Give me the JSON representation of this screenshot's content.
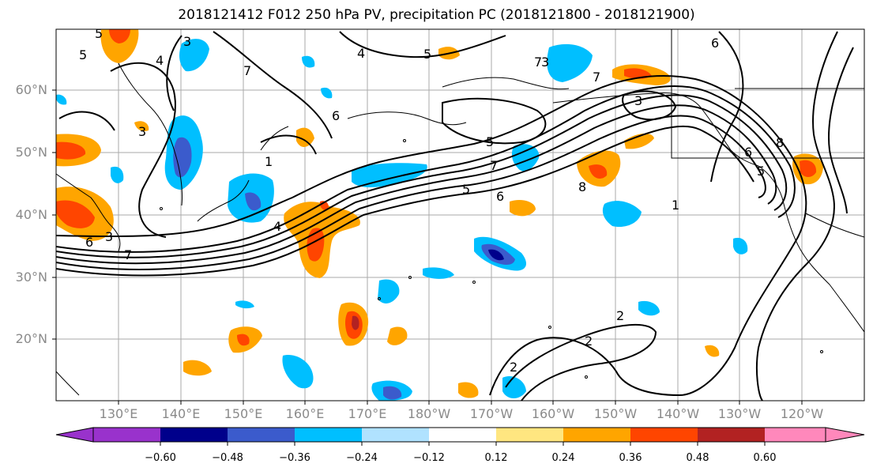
{
  "title": "2018121412 F012 250 hPa PV, precipitation PC (2018121800 - 2018121900)",
  "lat_labels": [
    "60°N",
    "50°N",
    "40°N",
    "30°N",
    "20°N"
  ],
  "lon_labels": [
    "130°E",
    "140°E",
    "150°E",
    "160°E",
    "170°E",
    "180°W",
    "170°W",
    "160°W",
    "150°W",
    "140°W",
    "130°W",
    "120°W"
  ],
  "colorbar": {
    "ticks": [
      "−0.60",
      "−0.48",
      "−0.36",
      "−0.24",
      "−0.12",
      "0.12",
      "0.24",
      "0.36",
      "0.48",
      "0.60"
    ],
    "colors": [
      "#9932cc",
      "#00008b",
      "#3b5bcc",
      "#00bfff",
      "#b0e2ff",
      "#ffffff",
      "#ffe680",
      "#ffa500",
      "#ff4500",
      "#b22222",
      "#ff88bb"
    ]
  },
  "contour_labels": [
    "5",
    "4",
    "3",
    "7",
    "5",
    "4",
    "5",
    "6",
    "3",
    "6",
    "1",
    "3",
    "7",
    "7",
    "3",
    "5",
    "7",
    "5",
    "6",
    "8",
    "1",
    "6",
    "8",
    "7",
    "5",
    "4",
    "3",
    "6",
    "2",
    "2",
    "2"
  ]
}
